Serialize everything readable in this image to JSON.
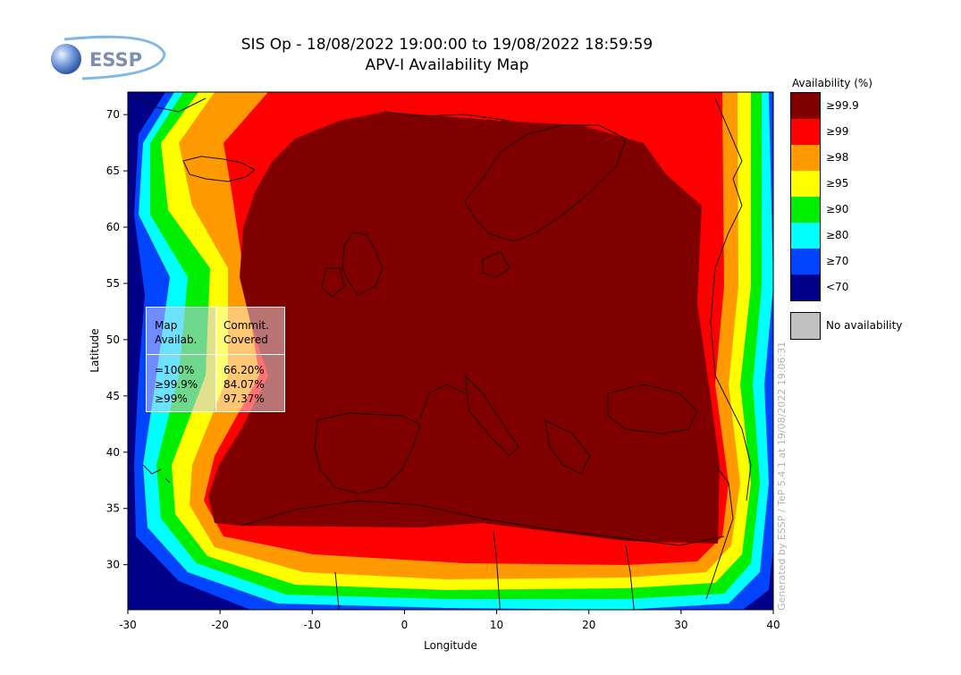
{
  "header": {
    "logo_text": "ESSP",
    "title_line1": "SIS Op - 18/08/2022 19:00:00 to 19/08/2022 18:59:59",
    "title_line2": "APV-I Availability Map"
  },
  "axes": {
    "xlabel": "Longitude",
    "ylabel": "Latitude",
    "xlim": [
      -30,
      40
    ],
    "ylim": [
      26,
      72
    ],
    "xticks": [
      -30,
      -20,
      -10,
      0,
      10,
      20,
      30,
      40
    ],
    "yticks": [
      30,
      35,
      40,
      45,
      50,
      55,
      60,
      65,
      70
    ]
  },
  "legend": {
    "title": "Availability (%)",
    "items": [
      {
        "label": "≥99.9",
        "color": "#800000"
      },
      {
        "label": "≥99",
        "color": "#ff0000"
      },
      {
        "label": "≥98",
        "color": "#ff9900"
      },
      {
        "label": "≥95",
        "color": "#ffff00"
      },
      {
        "label": "≥90",
        "color": "#00ee00"
      },
      {
        "label": "≥80",
        "color": "#00ffff"
      },
      {
        "label": "≥70",
        "color": "#0044ff"
      },
      {
        "label": "<70",
        "color": "#000088"
      }
    ],
    "no_availability_label": "No availability",
    "no_availability_color": "#c0c0c0"
  },
  "stats": {
    "col1_header_l1": "Map",
    "col1_header_l2": "Availab.",
    "col2_header_l1": "Commit.",
    "col2_header_l2": "Covered",
    "rows": [
      {
        "level": "=100%",
        "covered": "66.20%"
      },
      {
        "level": "≥99.9%",
        "covered": "84.07%"
      },
      {
        "level": "≥99%",
        "covered": "97.37%"
      }
    ]
  },
  "watermark": "Generated by ESSP / TeP 5.4.1 at 19/08/2022 19:06:31",
  "chart_data": {
    "type": "heatmap",
    "title": "APV-I Availability Map",
    "xlabel": "Longitude",
    "ylabel": "Latitude",
    "xlim": [
      -30,
      40
    ],
    "ylim": [
      26,
      72
    ],
    "core_region_availability_pct": "≥99.9",
    "core_region_extent": {
      "lon": [
        -21,
        33
      ],
      "lat": [
        33,
        67
      ]
    }
  }
}
